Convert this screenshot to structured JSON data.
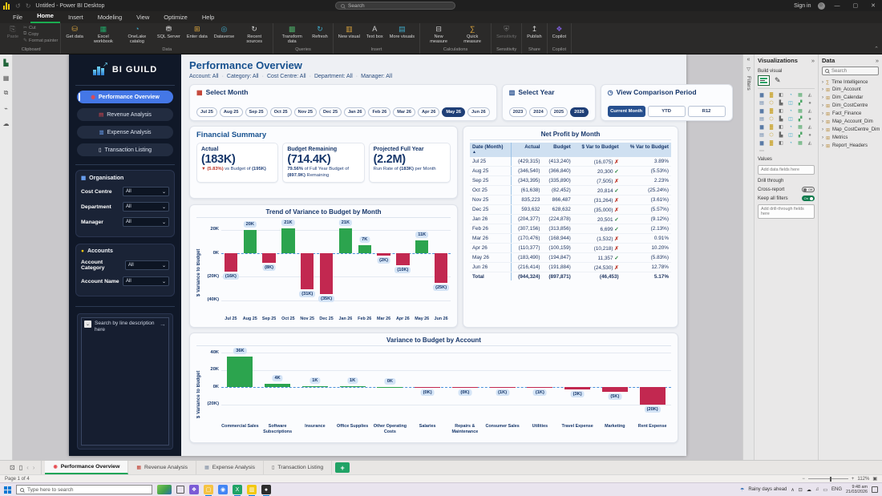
{
  "window": {
    "title": "Untitled - Power BI Desktop",
    "search_placeholder": "Search",
    "sign_in_label": "Sign in"
  },
  "ribbon": {
    "tabs": [
      "File",
      "Home",
      "Insert",
      "Modeling",
      "View",
      "Optimize",
      "Help"
    ],
    "active_tab": "Home",
    "groups": [
      {
        "name": "Clipboard",
        "dim": true,
        "buttons": [
          {
            "label": "Paste",
            "icon": "paste-icon",
            "size": "big"
          },
          {
            "label": "Cut",
            "icon": "cut-icon",
            "size": "small"
          },
          {
            "label": "Copy",
            "icon": "copy-icon",
            "size": "small"
          },
          {
            "label": "Format painter",
            "icon": "format-painter-icon",
            "size": "small"
          }
        ]
      },
      {
        "name": "Data",
        "buttons": [
          {
            "label": "Get data",
            "icon": "get-data-icon",
            "size": "big"
          },
          {
            "label": "Excel workbook",
            "icon": "excel-workbook-icon",
            "size": "big"
          },
          {
            "label": "OneLake catalog",
            "icon": "onelake-catalog-icon",
            "size": "big"
          },
          {
            "label": "SQL Server",
            "icon": "sql-server-icon",
            "size": "big"
          },
          {
            "label": "Enter data",
            "icon": "enter-data-icon",
            "size": "big"
          },
          {
            "label": "Dataverse",
            "icon": "dataverse-icon",
            "size": "big"
          },
          {
            "label": "Recent sources",
            "icon": "recent-sources-icon",
            "size": "big"
          }
        ]
      },
      {
        "name": "Queries",
        "buttons": [
          {
            "label": "Transform data",
            "icon": "transform-data-icon",
            "size": "big"
          },
          {
            "label": "Refresh",
            "icon": "refresh-icon",
            "size": "big"
          }
        ]
      },
      {
        "name": "Insert",
        "buttons": [
          {
            "label": "New visual",
            "icon": "new-visual-icon",
            "size": "big"
          },
          {
            "label": "Text box",
            "icon": "text-box-icon",
            "size": "big"
          },
          {
            "label": "More visuals",
            "icon": "more-visuals-icon",
            "size": "big"
          }
        ]
      },
      {
        "name": "Calculations",
        "buttons": [
          {
            "label": "New measure",
            "icon": "new-measure-icon",
            "size": "big"
          },
          {
            "label": "Quick measure",
            "icon": "quick-measure-icon",
            "size": "big"
          }
        ]
      },
      {
        "name": "Sensitivity",
        "dim": true,
        "buttons": [
          {
            "label": "Sensitivity",
            "icon": "sensitivity-icon",
            "size": "big"
          }
        ]
      },
      {
        "name": "Share",
        "buttons": [
          {
            "label": "Publish",
            "icon": "publish-icon",
            "size": "big"
          }
        ]
      },
      {
        "name": "Copilot",
        "buttons": [
          {
            "label": "Copilot",
            "icon": "copilot-icon",
            "size": "big"
          }
        ]
      }
    ]
  },
  "view_rail": [
    {
      "name": "report-view-icon",
      "active": true
    },
    {
      "name": "table-view-icon"
    },
    {
      "name": "model-view-icon"
    },
    {
      "name": "dax-query-view-icon"
    },
    {
      "name": "onelake-view-icon"
    }
  ],
  "sidebar": {
    "brand": "BI GUILD",
    "nav": [
      {
        "label": "Performance Overview",
        "icon": "target-icon",
        "active": true
      },
      {
        "label": "Revenue Analysis",
        "icon": "revenue-icon"
      },
      {
        "label": "Expense Analysis",
        "icon": "expense-icon"
      },
      {
        "label": "Transaction Listing",
        "icon": "transaction-icon"
      }
    ],
    "organisation": {
      "title": "Organisation",
      "icon": "org-icon",
      "filters": [
        {
          "label": "Cost Centre",
          "value": "All"
        },
        {
          "label": "Department",
          "value": "All"
        },
        {
          "label": "Manager",
          "value": "All"
        }
      ]
    },
    "accounts": {
      "title": "Accounts",
      "icon": "accounts-icon",
      "filters": [
        {
          "label": "Account Category",
          "value": "All"
        },
        {
          "label": "Account Name",
          "value": "All"
        }
      ]
    },
    "search": {
      "placeholder": "Search by line description here"
    }
  },
  "report": {
    "title": "Performance Overview",
    "filter_summary": [
      "Account: All",
      "Category: All",
      "Cost Centre: All",
      "Department: All",
      "Manager: All"
    ],
    "select_month": {
      "title": "Select Month",
      "icon": "calendar-icon",
      "months": [
        "Jul 25",
        "Aug 25",
        "Sep 25",
        "Oct 25",
        "Nov 25",
        "Dec 25",
        "Jan 26",
        "Feb 26",
        "Mar 26",
        "Apr 26",
        "May 26",
        "Jun 26"
      ],
      "selected": "May 26"
    },
    "select_year": {
      "title": "Select Year",
      "icon": "bar-chart-icon",
      "years": [
        "2023",
        "2024",
        "2025",
        "2026"
      ],
      "selected": "2026"
    },
    "comparison": {
      "title": "View Comparison Period",
      "icon": "clock-icon",
      "options": [
        "Current Month",
        "YTD",
        "R12"
      ],
      "selected": "Current Month"
    },
    "financial_summary": {
      "title": "Financial Summary",
      "cards": [
        {
          "label": "Actual",
          "value": "(183K)",
          "subparts": [
            {
              "text": "▼ (5.83%)",
              "color": "#c0392b",
              "bold": true
            },
            {
              "text": " vs Budget of "
            },
            {
              "text": "(195K)",
              "bold": true
            }
          ]
        },
        {
          "label": "Budget Remaining",
          "value": "(714.4K)",
          "subparts": [
            {
              "text": "79.56%",
              "bold": true
            },
            {
              "text": " of Full Year Budget of "
            },
            {
              "text": "(897.9K)",
              "bold": true
            },
            {
              "text": " Remaining"
            }
          ]
        },
        {
          "label": "Projected Full Year",
          "value": "(2.2M)",
          "subparts": [
            {
              "text": "Run Rate of "
            },
            {
              "text": "(183K)",
              "bold": true
            },
            {
              "text": " per Month"
            }
          ]
        }
      ]
    },
    "net_profit_table": {
      "title": "Net Profit by Month",
      "columns": [
        "Date (Month)",
        "Actual",
        "Budget",
        "$ Var to Budget",
        "% Var to Budget"
      ],
      "rows": [
        {
          "month": "Jul 25",
          "actual": "(429,315)",
          "budget": "(413,240)",
          "variance": "(16,075)",
          "favourable": false,
          "pct": "3.89%"
        },
        {
          "month": "Aug 25",
          "actual": "(346,540)",
          "budget": "(366,840)",
          "variance": "20,300",
          "favourable": true,
          "pct": "(5.53%)"
        },
        {
          "month": "Sep 25",
          "actual": "(343,395)",
          "budget": "(335,890)",
          "variance": "(7,505)",
          "favourable": false,
          "pct": "2.23%"
        },
        {
          "month": "Oct 25",
          "actual": "(61,638)",
          "budget": "(82,452)",
          "variance": "20,814",
          "favourable": true,
          "pct": "(25.24%)"
        },
        {
          "month": "Nov 25",
          "actual": "835,223",
          "budget": "866,487",
          "variance": "(31,264)",
          "favourable": false,
          "pct": "(3.61%)"
        },
        {
          "month": "Dec 25",
          "actual": "593,632",
          "budget": "628,632",
          "variance": "(35,000)",
          "favourable": false,
          "pct": "(5.57%)"
        },
        {
          "month": "Jan 26",
          "actual": "(204,377)",
          "budget": "(224,878)",
          "variance": "20,501",
          "favourable": true,
          "pct": "(9.12%)"
        },
        {
          "month": "Feb 26",
          "actual": "(307,156)",
          "budget": "(313,856)",
          "variance": "6,699",
          "favourable": true,
          "pct": "(2.13%)"
        },
        {
          "month": "Mar 26",
          "actual": "(170,476)",
          "budget": "(168,944)",
          "variance": "(1,532)",
          "favourable": false,
          "pct": "0.91%"
        },
        {
          "month": "Apr 26",
          "actual": "(110,377)",
          "budget": "(100,159)",
          "variance": "(10,218)",
          "favourable": false,
          "pct": "10.20%"
        },
        {
          "month": "May 26",
          "actual": "(183,490)",
          "budget": "(194,847)",
          "variance": "11,357",
          "favourable": true,
          "pct": "(5.83%)"
        },
        {
          "month": "Jun 26",
          "actual": "(216,414)",
          "budget": "(191,884)",
          "variance": "(24,530)",
          "favourable": false,
          "pct": "12.78%"
        }
      ],
      "total": {
        "month": "Total",
        "actual": "(944,324)",
        "budget": "(897,871)",
        "variance": "(46,453)",
        "pct": "5.17%"
      }
    }
  },
  "chart_data": [
    {
      "type": "bar",
      "title": "Trend of Variance to Budget by Month",
      "xlabel": "",
      "ylabel": "$ Variance to Budget",
      "categories": [
        "Jul 25",
        "Aug 25",
        "Sep 25",
        "Oct 25",
        "Nov 25",
        "Dec 25",
        "Jan 26",
        "Feb 26",
        "Mar 26",
        "Apr 26",
        "May 26",
        "Jun 26"
      ],
      "values": [
        -16,
        20,
        -8,
        21,
        -31,
        -35,
        21,
        7,
        -2,
        -10,
        11,
        -25
      ],
      "labels": [
        "(16K)",
        "20K",
        "(8K)",
        "21K",
        "(31K)",
        "(35K)",
        "21K",
        "7K",
        "(2K)",
        "(10K)",
        "11K",
        "(25K)"
      ],
      "yticks": [
        {
          "v": 20,
          "label": "20K"
        },
        {
          "v": 0,
          "label": "0K"
        },
        {
          "v": -20,
          "label": "(20K)"
        },
        {
          "v": -40,
          "label": "(40K)"
        }
      ],
      "ylim": [
        -43,
        28
      ],
      "grid": true,
      "legend": "none",
      "positive_color": "#2ca44e",
      "negative_color": "#c22850"
    },
    {
      "type": "bar",
      "title": "Variance to Budget by Account",
      "xlabel": "",
      "ylabel": "$ Variance to Budget",
      "categories": [
        "Commercial Sales",
        "Software Subscriptions",
        "Insurance",
        "Office Supplies",
        "Other Operating Costs",
        "Salaries",
        "Repairs & Maintenance",
        "Consumer Sales",
        "Utilities",
        "Travel Expense",
        "Marketing",
        "Rent Expense"
      ],
      "values": [
        36,
        4,
        1,
        1,
        0.4,
        -0.4,
        -0.5,
        -1,
        -1,
        -3,
        -5,
        -20
      ],
      "labels": [
        "36K",
        "4K",
        "1K",
        "1K",
        "0K",
        "(0K)",
        "(0K)",
        "(1K)",
        "(1K)",
        "(3K)",
        "(5K)",
        "(20K)"
      ],
      "yticks": [
        {
          "v": 40,
          "label": "40K"
        },
        {
          "v": 20,
          "label": "20K"
        },
        {
          "v": 0,
          "label": "0K"
        },
        {
          "v": -20,
          "label": "(20K)"
        }
      ],
      "ylim": [
        -26,
        45
      ],
      "grid": true,
      "legend": "none",
      "positive_color": "#2ca44e",
      "negative_color": "#c22850"
    }
  ],
  "panels": {
    "filters_label": "Filters",
    "visualizations": {
      "title": "Visualizations",
      "build_visual_label": "Build visual",
      "values_label": "Values",
      "add_fields_placeholder": "Add data fields here",
      "drill_through_label": "Drill through",
      "cross_report_label": "Cross-report",
      "cross_report_state": "Off",
      "keep_filters_label": "Keep all filters",
      "keep_filters_state": "On",
      "add_drill_placeholder": "Add drill-through fields here",
      "icon_count": 42
    },
    "data": {
      "title": "Data",
      "search_placeholder": "Search",
      "items": [
        {
          "name": "Time Intelligence",
          "icon": "function-icon"
        },
        {
          "name": "Dim_Account",
          "icon": "table-icon"
        },
        {
          "name": "Dim_Calendar",
          "icon": "table-icon"
        },
        {
          "name": "Dim_CostCentre",
          "icon": "table-icon"
        },
        {
          "name": "Fact_Finance",
          "icon": "table-icon"
        },
        {
          "name": "Map_Account_Dim",
          "icon": "table-icon"
        },
        {
          "name": "Map_CostCentre_Dim",
          "icon": "table-icon"
        },
        {
          "name": "Metrics",
          "icon": "table-icon"
        },
        {
          "name": "Report_Headers",
          "icon": "table-icon"
        }
      ]
    }
  },
  "page_tabs": {
    "tabs": [
      {
        "label": "Performance Overview",
        "icon": "target-icon",
        "active": true
      },
      {
        "label": "Revenue Analysis",
        "icon": "revenue-icon"
      },
      {
        "label": "Expense Analysis",
        "icon": "expense-icon"
      },
      {
        "label": "Transaction Listing",
        "icon": "transaction-icon"
      }
    ],
    "add_label": "+"
  },
  "status_bar": {
    "page_indicator": "Page 1 of 4",
    "zoom_level": "112%"
  },
  "taskbar": {
    "search_placeholder": "Type here to search",
    "apps": [
      {
        "name": "copilot-icon",
        "color": "#7b5cd6",
        "open": false
      },
      {
        "name": "file-explorer-icon",
        "color": "#f5c343",
        "open": true
      },
      {
        "name": "chrome-icon",
        "color": "#4285f4",
        "open": false
      },
      {
        "name": "excel-icon",
        "color": "#21a366",
        "open": true
      },
      {
        "name": "powerbi-icon",
        "color": "#f2c811",
        "open": true
      },
      {
        "name": "dark-app-icon",
        "color": "#2d2d2d",
        "open": true
      }
    ],
    "weather": "Rainy days ahead",
    "language": "ENG",
    "time": "9:48 am",
    "date": "21/03/2026"
  }
}
